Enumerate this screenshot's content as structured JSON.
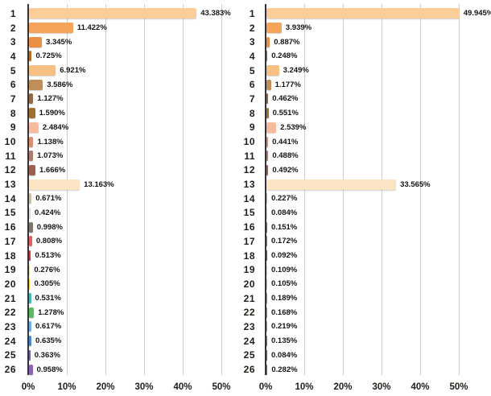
{
  "style": {
    "background": "#ffffff",
    "axis_color": "#33333b",
    "grid_color": "#cdcdcd",
    "category_label_color": "#211d18",
    "value_label_color": "#141414"
  },
  "bar_colors": [
    "#FACD9B",
    "#F4A55B",
    "#EA8F44",
    "#AD7428",
    "#F7C183",
    "#C18D5B",
    "#8F6A47",
    "#9E6E2C",
    "#F6BA9C",
    "#D88E72",
    "#AF7D6B",
    "#9D604F",
    "#FAE4C4",
    "#C9BFA9",
    "#DFDACE",
    "#7E7567",
    "#E75C5C",
    "#BD3E3E",
    "#EEDFA5",
    "#F4C73F",
    "#47B9AF",
    "#5ABB5E",
    "#72ABDE",
    "#4B88CB",
    "#6F60B0",
    "#8B64B2"
  ],
  "chart_data": [
    {
      "type": "bar",
      "orientation": "horizontal",
      "title": "",
      "categories": [
        "1",
        "2",
        "3",
        "4",
        "5",
        "6",
        "7",
        "8",
        "9",
        "10",
        "11",
        "12",
        "13",
        "14",
        "15",
        "16",
        "17",
        "18",
        "19",
        "20",
        "21",
        "22",
        "23",
        "24",
        "25",
        "26"
      ],
      "values": [
        43.383,
        11.422,
        3.345,
        0.725,
        6.921,
        3.586,
        1.127,
        1.59,
        2.484,
        1.138,
        1.073,
        1.666,
        13.163,
        0.671,
        0.424,
        0.998,
        0.808,
        0.513,
        0.276,
        0.305,
        0.531,
        1.278,
        0.617,
        0.635,
        0.363,
        0.958
      ],
      "value_label_format": "percent-3-decimals",
      "xlabel": "",
      "ylabel": "",
      "xlim": [
        0,
        50
      ],
      "x_ticks": [
        "0%",
        "10%",
        "20%",
        "30%",
        "40%",
        "50%"
      ],
      "grid": "vertical",
      "legend": "none"
    },
    {
      "type": "bar",
      "orientation": "horizontal",
      "title": "",
      "categories": [
        "1",
        "2",
        "3",
        "4",
        "5",
        "6",
        "7",
        "8",
        "9",
        "10",
        "11",
        "12",
        "13",
        "14",
        "15",
        "16",
        "17",
        "18",
        "19",
        "20",
        "21",
        "22",
        "23",
        "24",
        "25",
        "26"
      ],
      "values": [
        49.945,
        3.939,
        0.887,
        0.248,
        3.249,
        1.177,
        0.462,
        0.551,
        2.539,
        0.441,
        0.488,
        0.492,
        33.565,
        0.227,
        0.084,
        0.151,
        0.172,
        0.092,
        0.109,
        0.105,
        0.189,
        0.168,
        0.219,
        0.135,
        0.084,
        0.282
      ],
      "value_label_format": "percent-3-decimals",
      "xlabel": "",
      "ylabel": "",
      "xlim": [
        0,
        50
      ],
      "x_ticks": [
        "0%",
        "10%",
        "20%",
        "30%",
        "40%",
        "50%"
      ],
      "grid": "vertical",
      "legend": "none"
    }
  ]
}
